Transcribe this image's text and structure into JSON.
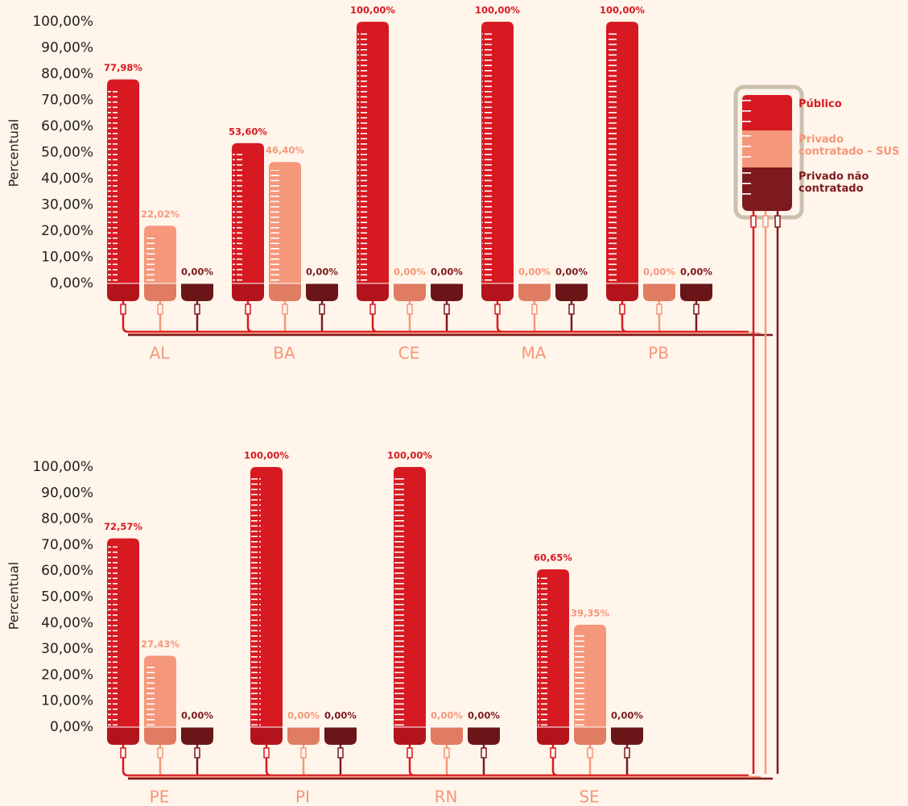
{
  "chart_data": [
    {
      "type": "bar",
      "y_label": "Percentual",
      "categories": [
        "AL",
        "BA",
        "CE",
        "MA",
        "PB"
      ],
      "series": [
        {
          "name": "Público",
          "color": "#d71a22",
          "values": [
            77.98,
            53.6,
            100,
            100,
            100
          ],
          "value_labels": [
            "77,98%",
            "53,60%",
            "100,00%",
            "100,00%",
            "100,00%"
          ]
        },
        {
          "name": "Privado contratado – SUS",
          "color": "#f5977a",
          "values": [
            22.02,
            46.4,
            0,
            0,
            0
          ],
          "value_labels": [
            "22,02%",
            "46,40%",
            "0,00%",
            "0,00%",
            "0,00%"
          ]
        },
        {
          "name": "Privado não contratado",
          "color": "#7d1a1e",
          "values": [
            0,
            0,
            0,
            0,
            0
          ],
          "value_labels": [
            "0,00%",
            "0,00%",
            "0,00%",
            "0,00%",
            "0,00%"
          ]
        }
      ],
      "ylim": [
        0,
        100
      ],
      "yticks": [
        {
          "value": 0,
          "label": "0,00%"
        },
        {
          "value": 10,
          "label": "10,00%"
        },
        {
          "value": 20,
          "label": "20,00%"
        },
        {
          "value": 30,
          "label": "30,00%"
        },
        {
          "value": 40,
          "label": "40,00%"
        },
        {
          "value": 50,
          "label": "50,00%"
        },
        {
          "value": 60,
          "label": "60,00%"
        },
        {
          "value": 70,
          "label": "70,00%"
        },
        {
          "value": 80,
          "label": "80,00%"
        },
        {
          "value": 90,
          "label": "90,00%"
        },
        {
          "value": 100,
          "label": "100,00%"
        }
      ]
    },
    {
      "type": "bar",
      "y_label": "Percentual",
      "categories": [
        "PE",
        "PI",
        "RN",
        "SE"
      ],
      "series": [
        {
          "color": "#d71a22",
          "values": [
            72.57,
            100,
            100,
            60.65
          ],
          "value_labels": [
            "72,57%",
            "100,00%",
            "100,00%",
            "60,65%"
          ]
        },
        {
          "color": "#f5977a",
          "values": [
            27.43,
            0,
            0,
            39.35
          ],
          "value_labels": [
            "27,43%",
            "0,00%",
            "0,00%",
            "39,35%"
          ]
        },
        {
          "color": "#7d1a1e",
          "values": [
            0,
            0,
            0,
            0
          ],
          "value_labels": [
            "0,00%",
            "0,00%",
            "0,00%",
            "0,00%"
          ]
        }
      ],
      "ylim": [
        0,
        100
      ],
      "yticks": [
        {
          "value": 0,
          "label": "0,00%"
        },
        {
          "value": 10,
          "label": "10,00%"
        },
        {
          "value": 20,
          "label": "20,00%"
        },
        {
          "value": 30,
          "label": "30,00%"
        },
        {
          "value": 40,
          "label": "40,00%"
        },
        {
          "value": 50,
          "label": "50,00%"
        },
        {
          "value": 60,
          "label": "60,00%"
        },
        {
          "value": 70,
          "label": "70,00%"
        },
        {
          "value": 80,
          "label": "80,00%"
        },
        {
          "value": 90,
          "label": "90,00%"
        },
        {
          "value": 100,
          "label": "100,00%"
        }
      ]
    }
  ]
}
